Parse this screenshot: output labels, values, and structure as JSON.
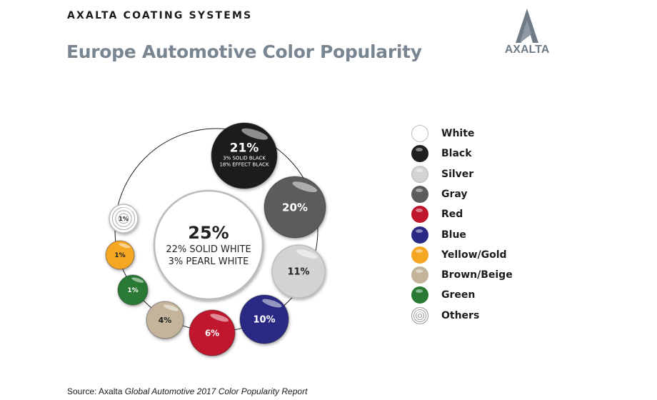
{
  "header": {
    "company": "AXALTA COATING SYSTEMS",
    "title": "Europe Automotive Color Popularity",
    "logo_text": "AXALTA"
  },
  "chart_data": {
    "type": "bubble",
    "title": "Europe Automotive Color Popularity",
    "unit": "%",
    "series": [
      {
        "name": "White",
        "value": 25,
        "label": "25%",
        "detail": [
          "22% SOLID WHITE",
          "3% PEARL WHITE"
        ],
        "color": "#ffffff"
      },
      {
        "name": "Black",
        "value": 21,
        "label": "21%",
        "detail": [
          "3% SOLID BLACK",
          "18% EFFECT BLACK"
        ],
        "color": "#1f1f1f"
      },
      {
        "name": "Gray",
        "value": 20,
        "label": "20%",
        "color": "#5b5c5e"
      },
      {
        "name": "Silver",
        "value": 11,
        "label": "11%",
        "color": "#d2d3d5"
      },
      {
        "name": "Blue",
        "value": 10,
        "label": "10%",
        "color": "#2a2a85"
      },
      {
        "name": "Red",
        "value": 6,
        "label": "6%",
        "color": "#c0172e"
      },
      {
        "name": "Brown/Beige",
        "value": 4,
        "label": "4%",
        "color": "#c4b49b"
      },
      {
        "name": "Green",
        "value": 1,
        "label": "1%",
        "color": "#2a7a34"
      },
      {
        "name": "Yellow/Gold",
        "value": 1,
        "label": "1%",
        "color": "#f5a623"
      },
      {
        "name": "Others",
        "value": 1,
        "label": "1%",
        "color": "#ffffff"
      }
    ]
  },
  "legend": {
    "items": [
      {
        "label": "White",
        "color": "#ffffff",
        "border": "#bcbcbc"
      },
      {
        "label": "Black",
        "color": "#1f1f1f",
        "border": "#1f1f1f"
      },
      {
        "label": "Silver",
        "color": "#d2d3d5",
        "border": "#b8b9bb"
      },
      {
        "label": "Gray",
        "color": "#5b5c5e",
        "border": "#5b5c5e"
      },
      {
        "label": "Red",
        "color": "#c0172e",
        "border": "#c0172e"
      },
      {
        "label": "Blue",
        "color": "#2a2a85",
        "border": "#2a2a85"
      },
      {
        "label": "Yellow/Gold",
        "color": "#f5a623",
        "border": "#f5a623"
      },
      {
        "label": "Brown/Beige",
        "color": "#c4b49b",
        "border": "#c4b49b"
      },
      {
        "label": "Green",
        "color": "#2a7a34",
        "border": "#2a7a34"
      },
      {
        "label": "Others",
        "color": "#ffffff",
        "border": "#999999"
      }
    ]
  },
  "footer": {
    "source_prefix": "Source: Axalta ",
    "source_title": "Global Automotive 2017 Color Popularity Report"
  }
}
